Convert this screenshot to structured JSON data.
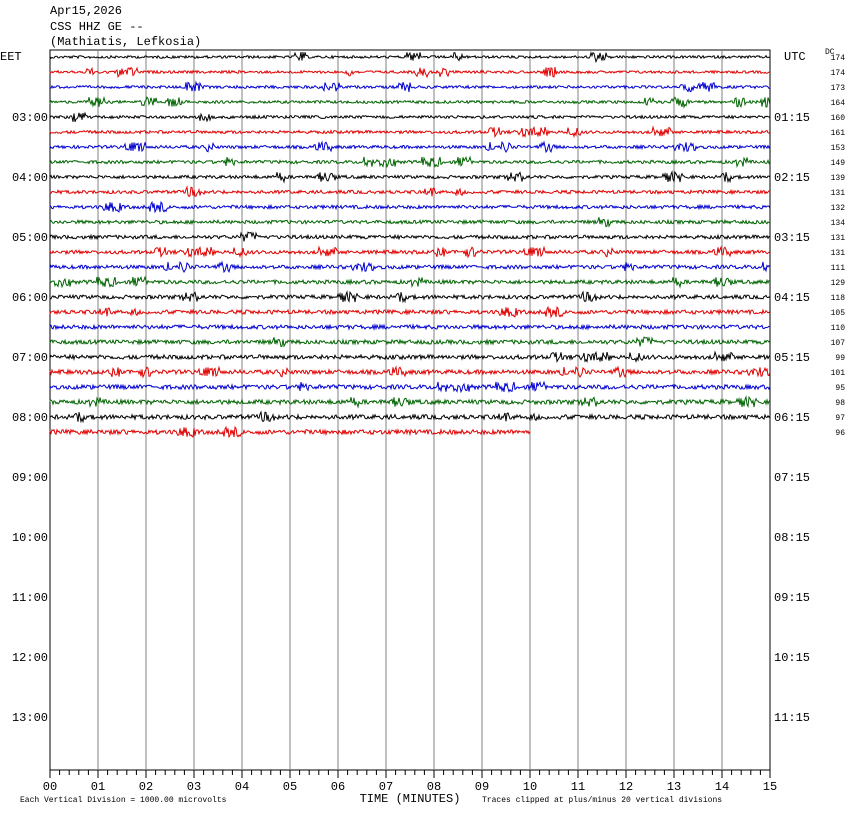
{
  "header": {
    "date": "Apr15,2026",
    "station": "CSS HHZ GE --",
    "location": "(Mathiatis, Lefkosia)"
  },
  "left_label": "EET",
  "right_label": "UTC",
  "dc_label": "DC",
  "eet_times": [
    "03:00",
    "04:00",
    "05:00",
    "06:00",
    "07:00",
    "08:00",
    "09:00",
    "10:00",
    "11:00",
    "12:00",
    "13:00"
  ],
  "utc_times": [
    "01:15",
    "02:15",
    "03:15",
    "04:15",
    "05:15",
    "06:15",
    "07:15",
    "08:15",
    "09:15",
    "10:15",
    "11:15"
  ],
  "dc_values": [
    174,
    174,
    173,
    164,
    160,
    161,
    153,
    149,
    139,
    131,
    132,
    134,
    131,
    131,
    111,
    129,
    118,
    105,
    110,
    107,
    99,
    101,
    95,
    98,
    97,
    96
  ],
  "trace_colors": [
    "#000000",
    "#e00000",
    "#0000d0",
    "#006400"
  ],
  "x_ticks": [
    "00",
    "01",
    "02",
    "03",
    "04",
    "05",
    "06",
    "07",
    "08",
    "09",
    "10",
    "11",
    "12",
    "13",
    "14",
    "15"
  ],
  "x_axis_label": "TIME (MINUTES)",
  "footer_left": "Each Vertical Division = 1000.00 microvolts",
  "footer_right": "Traces clipped at plus/minus 20 vertical divisions"
}
